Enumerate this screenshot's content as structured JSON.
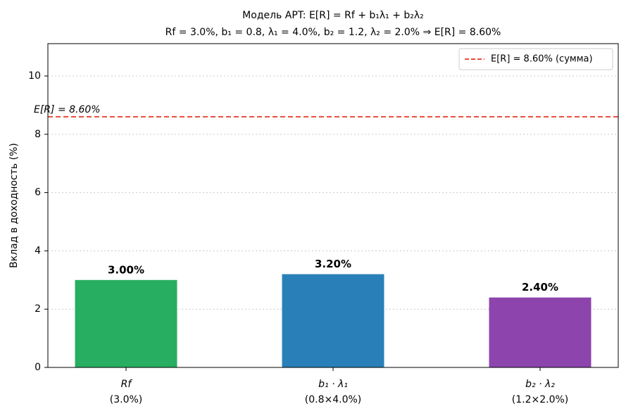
{
  "chart_data": {
    "type": "bar",
    "title": "Модель APT: E[R] = Rf + b₁λ₁ + b₂λ₂",
    "subtitle": "Rf = 3.0%, b₁ = 0.8, λ₁ = 4.0%, b₂ = 1.2, λ₂ = 2.0% ⇒ E[R] = 8.60%",
    "y_label": "Вклад в доходность (%)",
    "categories": [
      "Rf",
      "b₁ · λ₁",
      "b₂ · λ₂"
    ],
    "category_notes": [
      "(3.0%)",
      "(0.8×4.0%)",
      "(1.2×2.0%)"
    ],
    "values": [
      3.0,
      3.2,
      2.4
    ],
    "value_labels": [
      "3.00%",
      "3.20%",
      "2.40%"
    ],
    "colors": [
      "#27ae60",
      "#2980b9",
      "#8e44ad"
    ],
    "reference_line": {
      "name": "E[R] = 8.60% (сумма)",
      "value": 8.6,
      "annotation": "E[R] = 8.60%",
      "color": "#e74c3c"
    },
    "legend": "upper right",
    "ylim": [
      0,
      11.11
    ],
    "yticks": [
      0,
      2,
      4,
      6,
      8,
      10
    ],
    "grid": true
  }
}
